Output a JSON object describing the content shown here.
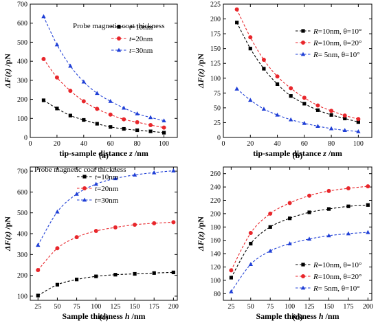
{
  "colors": {
    "black": "#000000",
    "red": "#e8262b",
    "blue": "#1f3fd6"
  },
  "chart_data": [
    {
      "type": "line",
      "panel": "(a)",
      "xlabel_pre": "tip-sample distance ",
      "xlabel_var": "z",
      "xlabel_post": " /nm",
      "ylabel_pre": "ΔF(z)",
      "ylabel_post": " /pN",
      "xlim": [
        0,
        110
      ],
      "ylim": [
        0,
        700
      ],
      "xticks": [
        0,
        20,
        40,
        60,
        80,
        100
      ],
      "yticks": [
        0,
        100,
        200,
        300,
        400,
        500,
        600,
        700
      ],
      "annotation": "Probe magnetic coat thickness",
      "legend_position": "top-right",
      "x": [
        10,
        20,
        30,
        40,
        50,
        60,
        70,
        80,
        90,
        100
      ],
      "series": [
        {
          "var": "t",
          "name": "=10nm",
          "color": "black",
          "marker": "square",
          "values": [
            195,
            152,
            115,
            92,
            72,
            55,
            45,
            38,
            32,
            25
          ]
        },
        {
          "var": "t",
          "name": "=20nm",
          "color": "red",
          "marker": "circle",
          "values": [
            412,
            315,
            245,
            190,
            150,
            120,
            95,
            80,
            65,
            52
          ]
        },
        {
          "var": "t",
          "name": "=30nm",
          "color": "blue",
          "marker": "triangle",
          "values": [
            635,
            487,
            375,
            292,
            232,
            190,
            155,
            125,
            105,
            88
          ]
        }
      ]
    },
    {
      "type": "line",
      "panel": "(b)",
      "xlabel_pre": "tip-sample distance ",
      "xlabel_var": "z",
      "xlabel_post": " /nm",
      "ylabel_pre": "ΔF(z)",
      "ylabel_post": " /pN",
      "xlim": [
        0,
        110
      ],
      "ylim": [
        0,
        225
      ],
      "xticks": [
        0,
        20,
        40,
        60,
        80,
        100
      ],
      "yticks": [
        0,
        25,
        50,
        75,
        100,
        125,
        150,
        175,
        200,
        225
      ],
      "legend_position": "top-right",
      "x": [
        10,
        20,
        30,
        40,
        50,
        60,
        70,
        80,
        90,
        100
      ],
      "series": [
        {
          "var": "R",
          "name": "=10nm, θ=10°",
          "color": "black",
          "marker": "square",
          "values": [
            194,
            150,
            116,
            90,
            70,
            57,
            46,
            38,
            32,
            26
          ]
        },
        {
          "var": "R",
          "name": "=10nm, θ=20°",
          "color": "red",
          "marker": "circle",
          "values": [
            216,
            169,
            131,
            103,
            83,
            67,
            54,
            45,
            37,
            31
          ]
        },
        {
          "var": "R",
          "name": "= 5nm, θ=10°",
          "color": "blue",
          "marker": "triangle",
          "values": [
            82,
            63,
            48,
            38,
            30,
            24,
            19,
            15,
            12,
            10
          ]
        }
      ]
    },
    {
      "type": "line",
      "panel": "(c)",
      "xlabel_pre": "Sample thickness ",
      "xlabel_var": "h",
      "xlabel_post": " /nm",
      "ylabel_pre": "ΔF(z)",
      "ylabel_post": " /pN",
      "xlim": [
        15,
        205
      ],
      "ylim": [
        80,
        720
      ],
      "xticks": [
        25,
        50,
        75,
        100,
        125,
        150,
        175,
        200
      ],
      "yticks": [
        100,
        200,
        300,
        400,
        500,
        600,
        700
      ],
      "annotation": "Probe magnetic coat thickness",
      "legend_position": "top-left",
      "x": [
        25,
        50,
        75,
        100,
        125,
        150,
        175,
        200
      ],
      "series": [
        {
          "var": "t",
          "name": "=10nm",
          "color": "black",
          "marker": "square",
          "values": [
            103,
            155,
            180,
            195,
            203,
            207,
            211,
            214
          ]
        },
        {
          "var": "t",
          "name": "=20nm",
          "color": "red",
          "marker": "circle",
          "values": [
            225,
            330,
            383,
            413,
            430,
            443,
            450,
            455
          ]
        },
        {
          "var": "t",
          "name": "=30nm",
          "color": "blue",
          "marker": "triangle",
          "values": [
            345,
            505,
            590,
            638,
            665,
            682,
            693,
            702
          ]
        }
      ]
    },
    {
      "type": "line",
      "panel": "(d)",
      "xlabel_pre": "Sample thickness ",
      "xlabel_var": "h",
      "xlabel_post": " /nm",
      "ylabel_pre": "ΔF(z)",
      "ylabel_post": " /pN",
      "xlim": [
        15,
        205
      ],
      "ylim": [
        70,
        270
      ],
      "xticks": [
        25,
        50,
        75,
        100,
        125,
        150,
        175,
        200
      ],
      "yticks": [
        80,
        100,
        120,
        140,
        160,
        180,
        200,
        220,
        240,
        260
      ],
      "legend_position": "bottom-right",
      "x": [
        25,
        50,
        75,
        100,
        125,
        150,
        175,
        200
      ],
      "series": [
        {
          "var": "R",
          "name": "=10nm, θ=10°",
          "color": "black",
          "marker": "square",
          "values": [
            104,
            155,
            180,
            193,
            202,
            207,
            211,
            213
          ]
        },
        {
          "var": "R",
          "name": "=10nm, θ=20°",
          "color": "red",
          "marker": "circle",
          "values": [
            115,
            171,
            200,
            216,
            227,
            234,
            238,
            241
          ]
        },
        {
          "var": "R",
          "name": "= 5nm, θ=10°",
          "color": "blue",
          "marker": "triangle",
          "values": [
            83,
            124,
            144,
            155,
            162,
            167,
            170,
            172
          ]
        }
      ]
    }
  ]
}
